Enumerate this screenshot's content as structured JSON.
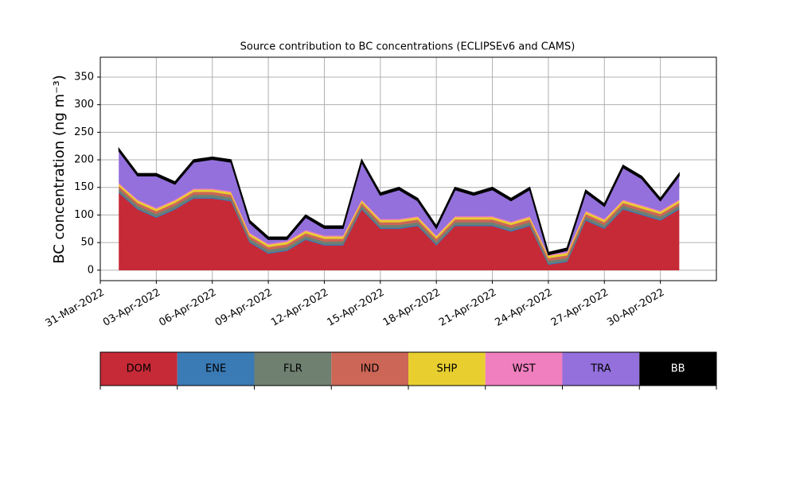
{
  "chart_data": {
    "type": "stacked-area",
    "title": "Source contribution to BC concentrations (ECLIPSEv6 and CAMS)",
    "y_label": "BC concentration (ng m⁻³)",
    "x": [
      "2022-04-01",
      "2022-04-02",
      "2022-04-03",
      "2022-04-04",
      "2022-04-05",
      "2022-04-06",
      "2022-04-07",
      "2022-04-08",
      "2022-04-09",
      "2022-04-10",
      "2022-04-11",
      "2022-04-12",
      "2022-04-13",
      "2022-04-14",
      "2022-04-15",
      "2022-04-16",
      "2022-04-17",
      "2022-04-18",
      "2022-04-19",
      "2022-04-20",
      "2022-04-21",
      "2022-04-22",
      "2022-04-23",
      "2022-04-24",
      "2022-04-25",
      "2022-04-26",
      "2022-04-27",
      "2022-04-28",
      "2022-04-29",
      "2022-04-30",
      "2022-05-01"
    ],
    "series": [
      {
        "name": "DOM",
        "color": "#c62a37",
        "values": [
          140,
          110,
          95,
          110,
          130,
          130,
          125,
          50,
          30,
          35,
          55,
          45,
          45,
          110,
          75,
          75,
          80,
          45,
          80,
          80,
          80,
          70,
          80,
          10,
          15,
          90,
          75,
          110,
          100,
          90,
          110
        ]
      },
      {
        "name": "ENE",
        "color": "#3a7ab5",
        "values": [
          2,
          2,
          2,
          2,
          2,
          2,
          2,
          2,
          2,
          2,
          2,
          2,
          2,
          2,
          2,
          2,
          2,
          2,
          2,
          2,
          2,
          2,
          2,
          2,
          2,
          2,
          2,
          2,
          2,
          2,
          2
        ]
      },
      {
        "name": "FLR",
        "color": "#6f8070",
        "values": [
          5,
          5,
          5,
          5,
          5,
          5,
          5,
          5,
          5,
          5,
          5,
          5,
          5,
          5,
          5,
          5,
          5,
          5,
          5,
          5,
          5,
          5,
          5,
          5,
          5,
          5,
          5,
          5,
          5,
          5,
          5
        ]
      },
      {
        "name": "IND",
        "color": "#cc6656",
        "values": [
          5,
          5,
          5,
          5,
          5,
          5,
          5,
          5,
          5,
          5,
          5,
          5,
          5,
          5,
          5,
          5,
          5,
          5,
          5,
          5,
          5,
          5,
          5,
          5,
          5,
          5,
          5,
          5,
          5,
          5,
          5
        ]
      },
      {
        "name": "SHP",
        "color": "#e8cf2f",
        "values": [
          4,
          4,
          4,
          4,
          4,
          4,
          4,
          4,
          4,
          4,
          4,
          4,
          4,
          4,
          4,
          4,
          4,
          4,
          4,
          4,
          4,
          4,
          4,
          4,
          4,
          4,
          4,
          4,
          4,
          4,
          4
        ]
      },
      {
        "name": "WST",
        "color": "#f07fbf",
        "values": [
          2,
          2,
          2,
          2,
          2,
          2,
          2,
          2,
          2,
          2,
          2,
          2,
          2,
          2,
          2,
          2,
          2,
          2,
          2,
          2,
          2,
          2,
          2,
          2,
          2,
          2,
          2,
          2,
          2,
          2,
          2
        ]
      },
      {
        "name": "TRA",
        "color": "#9370db",
        "values": [
          58,
          43,
          58,
          28,
          48,
          53,
          53,
          18,
          8,
          3,
          23,
          13,
          13,
          68,
          43,
          53,
          28,
          13,
          48,
          38,
          48,
          38,
          48,
          0,
          3,
          33,
          23,
          58,
          48,
          18,
          43
        ]
      },
      {
        "name": "BB",
        "color": "#000000",
        "values": [
          4,
          4,
          4,
          4,
          4,
          4,
          4,
          4,
          4,
          4,
          4,
          4,
          4,
          4,
          4,
          4,
          4,
          4,
          4,
          4,
          4,
          4,
          4,
          4,
          4,
          4,
          4,
          4,
          4,
          4,
          4
        ]
      }
    ],
    "xlim": [
      "2022-03-31",
      "2022-05-03"
    ],
    "xticks": [
      {
        "value": "2022-03-31",
        "label": "31-Mar-2022"
      },
      {
        "value": "2022-04-03",
        "label": "03-Apr-2022"
      },
      {
        "value": "2022-04-06",
        "label": "06-Apr-2022"
      },
      {
        "value": "2022-04-09",
        "label": "09-Apr-2022"
      },
      {
        "value": "2022-04-12",
        "label": "12-Apr-2022"
      },
      {
        "value": "2022-04-15",
        "label": "15-Apr-2022"
      },
      {
        "value": "2022-04-18",
        "label": "18-Apr-2022"
      },
      {
        "value": "2022-04-21",
        "label": "21-Apr-2022"
      },
      {
        "value": "2022-04-24",
        "label": "24-Apr-2022"
      },
      {
        "value": "2022-04-27",
        "label": "27-Apr-2022"
      },
      {
        "value": "2022-04-30",
        "label": "30-Apr-2022"
      }
    ],
    "ylim": [
      -19,
      386
    ],
    "yticks": [
      0,
      50,
      100,
      150,
      200,
      250,
      300,
      350
    ],
    "grid": true
  }
}
